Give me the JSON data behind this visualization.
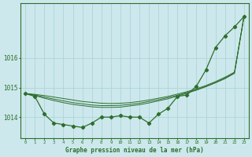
{
  "hours": [
    0,
    1,
    2,
    3,
    4,
    5,
    6,
    7,
    8,
    9,
    10,
    11,
    12,
    13,
    14,
    15,
    16,
    17,
    18,
    19,
    20,
    21,
    22,
    23
  ],
  "pressure_main": [
    1014.8,
    1014.7,
    1014.1,
    1013.8,
    1013.75,
    1013.7,
    1013.65,
    1013.8,
    1014.0,
    1014.0,
    1014.05,
    1014.0,
    1014.0,
    1013.8,
    1014.1,
    1014.3,
    1014.7,
    1014.75,
    1015.05,
    1015.6,
    1016.35,
    1016.75,
    1017.05,
    1017.4
  ],
  "trend_line1": [
    1014.8,
    1014.77,
    1014.73,
    1014.68,
    1014.63,
    1014.58,
    1014.53,
    1014.5,
    1014.47,
    1014.46,
    1014.47,
    1014.49,
    1014.53,
    1014.58,
    1014.64,
    1014.7,
    1014.78,
    1014.86,
    1014.96,
    1015.07,
    1015.2,
    1015.35,
    1015.52,
    1017.4
  ],
  "trend_line2": [
    1014.8,
    1014.75,
    1014.68,
    1014.61,
    1014.55,
    1014.49,
    1014.45,
    1014.41,
    1014.39,
    1014.39,
    1014.4,
    1014.43,
    1014.47,
    1014.53,
    1014.59,
    1014.66,
    1014.74,
    1014.83,
    1014.93,
    1015.04,
    1015.17,
    1015.32,
    1015.5,
    1017.4
  ],
  "trend_line3": [
    1014.8,
    1014.73,
    1014.64,
    1014.56,
    1014.49,
    1014.43,
    1014.39,
    1014.35,
    1014.33,
    1014.33,
    1014.34,
    1014.38,
    1014.42,
    1014.48,
    1014.55,
    1014.62,
    1014.71,
    1014.81,
    1014.91,
    1015.03,
    1015.16,
    1015.3,
    1015.48,
    1017.4
  ],
  "bg_color": "#cce8ec",
  "grid_color": "#aed4d8",
  "line_color": "#2d6e2d",
  "text_color": "#2d6e2d",
  "ylabel_ticks": [
    1014,
    1015,
    1016
  ],
  "ylim": [
    1013.3,
    1017.85
  ],
  "xlim": [
    -0.5,
    23.5
  ],
  "xlabel": "Graphe pression niveau de la mer (hPa)"
}
